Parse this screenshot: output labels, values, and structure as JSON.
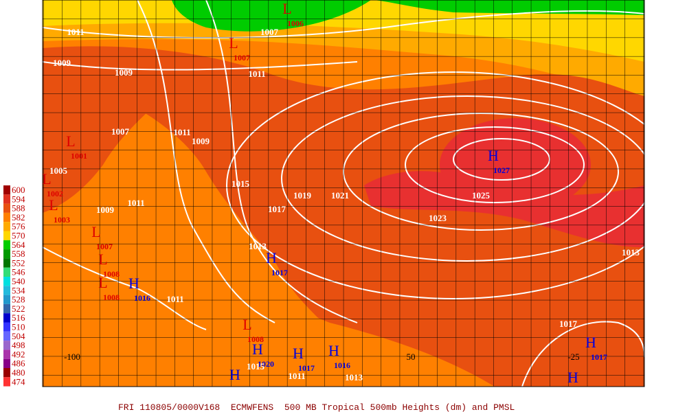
{
  "legend": {
    "levels": [
      {
        "label": "600",
        "color": "#a00000"
      },
      {
        "label": "594",
        "color": "#e03020"
      },
      {
        "label": "588",
        "color": "#e85010"
      },
      {
        "label": "582",
        "color": "#ff7f00"
      },
      {
        "label": "576",
        "color": "#ffaa00"
      },
      {
        "label": "570",
        "color": "#ffd700"
      },
      {
        "label": "564",
        "color": "#00cc00"
      },
      {
        "label": "558",
        "color": "#009900"
      },
      {
        "label": "552",
        "color": "#007700"
      },
      {
        "label": "546",
        "color": "#33dd77"
      },
      {
        "label": "540",
        "color": "#00e0e0"
      },
      {
        "label": "534",
        "color": "#22bbdd"
      },
      {
        "label": "528",
        "color": "#2299cc"
      },
      {
        "label": "522",
        "color": "#3366aa"
      },
      {
        "label": "516",
        "color": "#0000cc"
      },
      {
        "label": "510",
        "color": "#3333ff"
      },
      {
        "label": "504",
        "color": "#6666ff"
      },
      {
        "label": "498",
        "color": "#9966cc"
      },
      {
        "label": "492",
        "color": "#aa33aa"
      },
      {
        "label": "486",
        "color": "#880088"
      },
      {
        "label": "480",
        "color": "#990000"
      },
      {
        "label": "474",
        "color": "#ff3333"
      }
    ]
  },
  "centers": [
    {
      "letter": "L",
      "value": "1006"
    },
    {
      "letter": "L",
      "value": "1007"
    },
    {
      "letter": "L",
      "value": "1001"
    },
    {
      "letter": "L",
      "value": "1002"
    },
    {
      "letter": "L",
      "value": "1003"
    },
    {
      "letter": "L",
      "value": "1007"
    },
    {
      "letter": "L",
      "value": "1008"
    },
    {
      "letter": "L",
      "value": "1008"
    },
    {
      "letter": "H",
      "value": "1016"
    },
    {
      "letter": "H",
      "value": "1027"
    },
    {
      "letter": "H",
      "value": "1017"
    },
    {
      "letter": "L",
      "value": "1008"
    },
    {
      "letter": "H",
      "value": "1020"
    },
    {
      "letter": "H",
      "value": "1017"
    },
    {
      "letter": "H",
      "value": "1016"
    },
    {
      "letter": "H",
      "value": "1017"
    },
    {
      "letter": "H"
    },
    {
      "letter": "H"
    }
  ],
  "isobar_labels": [
    "1011",
    "1007",
    "1009",
    "1009",
    "1011",
    "1007",
    "1011",
    "1009",
    "1005",
    "1015",
    "1019",
    "1021",
    "1025",
    "1011",
    "1009",
    "1017",
    "1023",
    "1013",
    "1013",
    "1011",
    "1017",
    "1015",
    "1011",
    "1013"
  ],
  "longitude_labels": [
    "-100",
    "50",
    "-25"
  ],
  "caption": "FRI 110805/0000V168  ECMWFENS  500 MB Tropical 500mb Heights (dm) and PMSL"
}
